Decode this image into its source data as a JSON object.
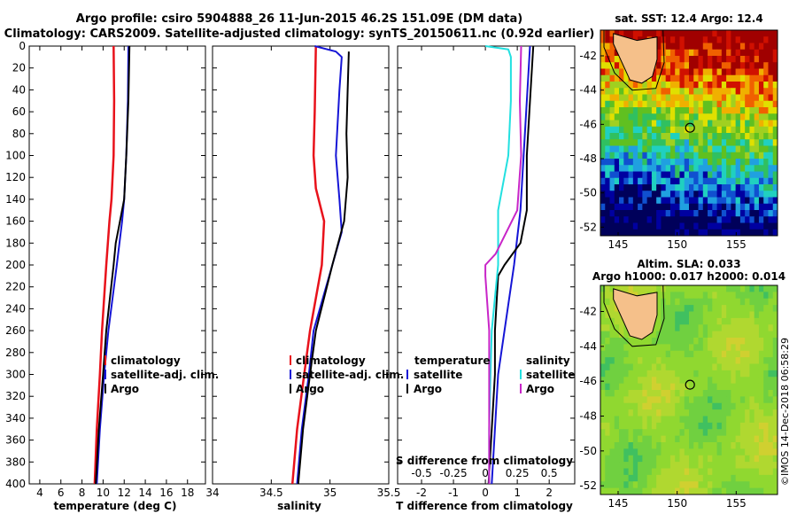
{
  "title": {
    "line1": "Argo profile: csiro 5904888_26 11-Jun-2015 46.2S 151.09E (DM data)",
    "line2": "Climatology: CARS2009. Satellite-adjusted climatology: synTS_20150611.nc (0.92d earlier)"
  },
  "colors": {
    "climatology": "#e8121b",
    "satellite": "#1515d6",
    "argo": "#000000",
    "sat_s": "#22e0e0",
    "argo_s": "#c825c8"
  },
  "depth_axis": {
    "ticks": [
      "0",
      "20",
      "40",
      "60",
      "80",
      "100",
      "120",
      "140",
      "160",
      "180",
      "200",
      "220",
      "240",
      "260",
      "280",
      "300",
      "320",
      "340",
      "360",
      "380",
      "400"
    ],
    "ylim": [
      0,
      400
    ]
  },
  "chart_data": [
    {
      "type": "line",
      "name": "temperature",
      "xlabel": "temperature (deg C)",
      "xlim": [
        3,
        19.7
      ],
      "xticks": [
        "4",
        "6",
        "8",
        "10",
        "12",
        "14",
        "16",
        "18"
      ],
      "xtick_values": [
        4,
        6,
        8,
        10,
        12,
        14,
        16,
        18
      ],
      "legend": [
        "climatology",
        "satellite-adj. clim.",
        "Argo"
      ],
      "series": [
        {
          "name": "climatology",
          "depth": [
            0,
            50,
            100,
            140,
            160,
            200,
            260,
            300,
            350,
            400
          ],
          "values": [
            11.0,
            11.05,
            11.0,
            10.8,
            10.6,
            10.3,
            9.9,
            9.7,
            9.4,
            9.2
          ]
        },
        {
          "name": "satellite-adj. clim.",
          "depth": [
            0,
            50,
            100,
            140,
            160,
            200,
            260,
            300,
            350,
            400
          ],
          "values": [
            12.4,
            12.35,
            12.2,
            12.0,
            11.8,
            11.3,
            10.5,
            10.1,
            9.7,
            9.4
          ]
        },
        {
          "name": "Argo",
          "depth": [
            0,
            50,
            100,
            140,
            160,
            180,
            200,
            260,
            300,
            350,
            400
          ],
          "values": [
            12.5,
            12.4,
            12.2,
            12.0,
            11.6,
            11.2,
            11.0,
            10.3,
            10.0,
            9.6,
            9.3
          ]
        }
      ]
    },
    {
      "type": "line",
      "name": "salinity",
      "xlabel": "salinity",
      "xlim": [
        34,
        35.5
      ],
      "xticks": [
        "34",
        "34.5",
        "35",
        "35.5"
      ],
      "xtick_values": [
        34,
        34.5,
        35,
        35.5
      ],
      "legend": [
        "climatology",
        "satellite-adj. clim.",
        "Argo"
      ],
      "series": [
        {
          "name": "climatology",
          "depth": [
            0,
            60,
            100,
            130,
            160,
            200,
            260,
            300,
            350,
            400
          ],
          "values": [
            34.88,
            34.87,
            34.86,
            34.88,
            34.95,
            34.93,
            34.83,
            34.78,
            34.72,
            34.68
          ]
        },
        {
          "name": "satellite-adj. clim.",
          "depth": [
            0,
            5,
            10,
            40,
            100,
            140,
            170,
            200,
            260,
            300,
            350,
            400
          ],
          "values": [
            34.87,
            35.05,
            35.1,
            35.08,
            35.05,
            35.08,
            35.1,
            35.02,
            34.86,
            34.82,
            34.76,
            34.72
          ]
        },
        {
          "name": "Argo",
          "depth": [
            5,
            40,
            80,
            120,
            160,
            200,
            260,
            300,
            350,
            400
          ],
          "values": [
            35.16,
            35.15,
            35.14,
            35.15,
            35.12,
            35.02,
            34.88,
            34.83,
            34.77,
            34.73
          ]
        }
      ]
    },
    {
      "type": "line",
      "name": "difference",
      "xlabel": "T difference from climatology",
      "x2label": "S difference from climatology",
      "xlim": [
        -2.75,
        2.8
      ],
      "xticks": [
        "-2",
        "-1",
        "0",
        "1",
        "2"
      ],
      "xtick_values": [
        -2,
        -1,
        0,
        1,
        2
      ],
      "x2ticks": [
        "-0.5",
        "-0.25",
        "0",
        "0.25",
        "0.5"
      ],
      "x2tick_values": [
        -0.5,
        -0.25,
        0,
        0.25,
        0.5
      ],
      "legend_temperature": {
        "title": "temperature",
        "items": [
          "satellite",
          "Argo"
        ]
      },
      "legend_salinity": {
        "title": "salinity",
        "items": [
          "satellite",
          "Argo"
        ]
      },
      "series": [
        {
          "name": "temperature satellite",
          "depth": [
            0,
            50,
            100,
            150,
            200,
            260,
            300,
            350,
            400
          ],
          "values": [
            1.4,
            1.3,
            1.2,
            1.1,
            0.9,
            0.6,
            0.4,
            0.3,
            0.2
          ]
        },
        {
          "name": "temperature Argo",
          "depth": [
            0,
            50,
            100,
            150,
            180,
            200,
            210,
            260,
            300,
            350,
            400
          ],
          "values": [
            1.5,
            1.4,
            1.3,
            1.3,
            1.1,
            0.6,
            0.4,
            0.3,
            0.3,
            0.2,
            0.1
          ]
        },
        {
          "name": "salinity satellite",
          "depth": [
            0,
            3,
            10,
            50,
            100,
            150,
            200,
            260,
            300,
            350,
            400
          ],
          "values": [
            0.0,
            0.18,
            0.2,
            0.2,
            0.18,
            0.1,
            0.1,
            0.05,
            0.04,
            0.03,
            0.03
          ]
        },
        {
          "name": "salinity Argo",
          "depth": [
            0,
            50,
            100,
            150,
            190,
            200,
            210,
            260,
            300,
            350,
            400
          ],
          "values": [
            0.28,
            0.27,
            0.28,
            0.25,
            0.08,
            0.0,
            0.0,
            0.03,
            0.03,
            0.03,
            0.03
          ]
        }
      ]
    }
  ],
  "sst_map": {
    "title": "sat. SST: 12.4 Argo: 12.4",
    "lat_ticks": [
      "-42",
      "-44",
      "-46",
      "-48",
      "-50",
      "-52"
    ],
    "lat_values": [
      -42,
      -44,
      -46,
      -48,
      -50,
      -52
    ],
    "lon_ticks": [
      "145",
      "150",
      "155"
    ],
    "lon_values": [
      145,
      150,
      155
    ],
    "lon_range": [
      143.5,
      158.5
    ],
    "lat_range": [
      -52.5,
      -40.5
    ],
    "argo_position": [
      151.09,
      -46.2
    ]
  },
  "sla_map": {
    "title_line1": "Altim. SLA: 0.033",
    "title_line2": "Argo h1000: 0.017 h2000: 0.014",
    "lat_ticks": [
      "-42",
      "-44",
      "-46",
      "-48",
      "-50",
      "-52"
    ],
    "lat_values": [
      -42,
      -44,
      -46,
      -48,
      -50,
      -52
    ],
    "lon_ticks": [
      "145",
      "150",
      "155"
    ],
    "lon_values": [
      145,
      150,
      155
    ],
    "lon_range": [
      143.5,
      158.5
    ],
    "lat_range": [
      -52.5,
      -40.5
    ],
    "argo_position": [
      151.09,
      -46.2
    ]
  },
  "watermark": "©IMOS 14-Dec-2018 06:58:29"
}
